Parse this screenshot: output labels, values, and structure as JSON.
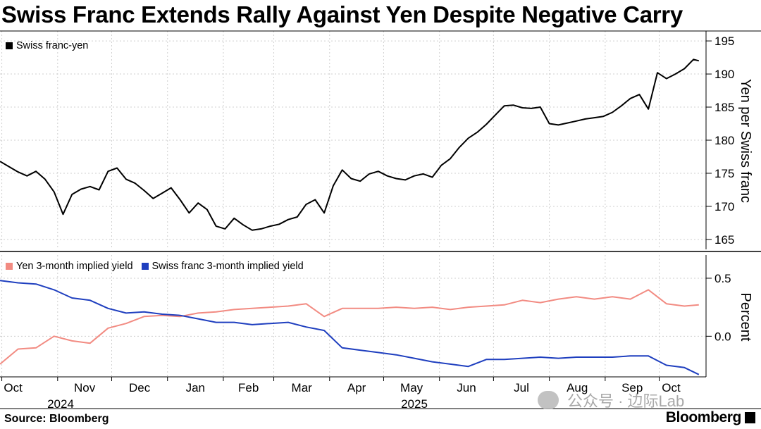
{
  "title": "Swiss Franc Extends Rally Against Yen Despite Negative Carry",
  "source": "Source: Bloomberg",
  "brand": "Bloomberg",
  "watermark": "公众号 · 边际Lab",
  "chart_data": [
    {
      "type": "line",
      "legend": [
        {
          "name": "Swiss franc-yen",
          "color": "#000000"
        }
      ],
      "ylabel": "Yen per Swiss franc",
      "ylim": [
        163.5,
        196.5
      ],
      "yticks": [
        165,
        170,
        175,
        180,
        185,
        190,
        195
      ],
      "grid": true,
      "series": [
        {
          "name": "Swiss franc-yen",
          "color": "#000000",
          "x": [
            "2024-09-30",
            "2024-10-05",
            "2024-10-10",
            "2024-10-15",
            "2024-10-20",
            "2024-10-25",
            "2024-10-30",
            "2024-11-04",
            "2024-11-09",
            "2024-11-14",
            "2024-11-19",
            "2024-11-24",
            "2024-11-29",
            "2024-12-04",
            "2024-12-09",
            "2024-12-14",
            "2024-12-19",
            "2024-12-24",
            "2024-12-29",
            "2025-01-03",
            "2025-01-08",
            "2025-01-13",
            "2025-01-18",
            "2025-01-23",
            "2025-01-28",
            "2025-02-02",
            "2025-02-07",
            "2025-02-12",
            "2025-02-17",
            "2025-02-22",
            "2025-02-27",
            "2025-03-04",
            "2025-03-09",
            "2025-03-14",
            "2025-03-19",
            "2025-03-24",
            "2025-03-29",
            "2025-04-03",
            "2025-04-08",
            "2025-04-13",
            "2025-04-18",
            "2025-04-23",
            "2025-04-28",
            "2025-05-03",
            "2025-05-08",
            "2025-05-13",
            "2025-05-18",
            "2025-05-23",
            "2025-05-28",
            "2025-06-02",
            "2025-06-07",
            "2025-06-12",
            "2025-06-17",
            "2025-06-22",
            "2025-06-27",
            "2025-07-02",
            "2025-07-07",
            "2025-07-12",
            "2025-07-17",
            "2025-07-22",
            "2025-07-27",
            "2025-08-01",
            "2025-08-06",
            "2025-08-11",
            "2025-08-16",
            "2025-08-21",
            "2025-08-26",
            "2025-08-31",
            "2025-09-05",
            "2025-09-10",
            "2025-09-15",
            "2025-09-20",
            "2025-09-25",
            "2025-09-30",
            "2025-10-05",
            "2025-10-10",
            "2025-10-15",
            "2025-10-20",
            "2025-10-23"
          ],
          "values": [
            176.8,
            176.0,
            175.2,
            174.6,
            175.3,
            174.1,
            172.2,
            168.8,
            171.8,
            172.6,
            173.0,
            172.5,
            175.3,
            175.8,
            174.1,
            173.5,
            172.4,
            171.2,
            172.0,
            172.8,
            171.0,
            169.0,
            170.5,
            169.5,
            167.0,
            166.6,
            168.2,
            167.2,
            166.4,
            166.6,
            167.0,
            167.3,
            168.0,
            168.4,
            170.3,
            171.0,
            169.0,
            173.1,
            175.5,
            174.2,
            173.8,
            174.9,
            175.3,
            174.6,
            174.2,
            174.0,
            174.6,
            174.9,
            174.4,
            176.2,
            177.2,
            178.9,
            180.3,
            181.2,
            182.4,
            183.8,
            185.2,
            185.3,
            184.9,
            184.8,
            185.0,
            182.5,
            182.3,
            182.6,
            182.9,
            183.2,
            183.4,
            183.6,
            184.2,
            185.2,
            186.3,
            186.9,
            184.7,
            190.2,
            189.3,
            190.0,
            190.8,
            192.2,
            192.0
          ]
        }
      ]
    },
    {
      "type": "line",
      "legend": [
        {
          "name": "Yen 3-month implied yield",
          "color": "#f28b82"
        },
        {
          "name": "Swiss franc 3-month implied yield",
          "color": "#1f3fbf"
        }
      ],
      "ylabel": "Percent",
      "ylim": [
        -0.35,
        0.7
      ],
      "yticks": [
        0.0,
        0.5
      ],
      "grid": true,
      "series": [
        {
          "name": "Yen 3-month implied yield",
          "color": "#f28b82",
          "x": [
            "2024-09-30",
            "2024-10-10",
            "2024-10-20",
            "2024-10-30",
            "2024-11-09",
            "2024-11-19",
            "2024-11-29",
            "2024-12-09",
            "2024-12-19",
            "2024-12-29",
            "2025-01-08",
            "2025-01-18",
            "2025-01-28",
            "2025-02-07",
            "2025-02-17",
            "2025-02-27",
            "2025-03-09",
            "2025-03-19",
            "2025-03-29",
            "2025-04-08",
            "2025-04-18",
            "2025-04-28",
            "2025-05-08",
            "2025-05-18",
            "2025-05-28",
            "2025-06-07",
            "2025-06-17",
            "2025-06-27",
            "2025-07-07",
            "2025-07-17",
            "2025-07-27",
            "2025-08-06",
            "2025-08-16",
            "2025-08-26",
            "2025-09-05",
            "2025-09-15",
            "2025-09-25",
            "2025-10-05",
            "2025-10-15",
            "2025-10-23"
          ],
          "values": [
            -0.24,
            -0.11,
            -0.1,
            0.0,
            -0.04,
            -0.06,
            0.07,
            0.11,
            0.17,
            0.18,
            0.17,
            0.2,
            0.21,
            0.23,
            0.24,
            0.25,
            0.26,
            0.28,
            0.17,
            0.24,
            0.24,
            0.24,
            0.25,
            0.24,
            0.25,
            0.23,
            0.25,
            0.26,
            0.27,
            0.31,
            0.29,
            0.32,
            0.34,
            0.32,
            0.34,
            0.32,
            0.4,
            0.28,
            0.26,
            0.27
          ]
        },
        {
          "name": "Swiss franc 3-month implied yield",
          "color": "#1f3fbf",
          "x": [
            "2024-09-30",
            "2024-10-10",
            "2024-10-20",
            "2024-10-30",
            "2024-11-09",
            "2024-11-19",
            "2024-11-29",
            "2024-12-09",
            "2024-12-19",
            "2024-12-29",
            "2025-01-08",
            "2025-01-18",
            "2025-01-28",
            "2025-02-07",
            "2025-02-17",
            "2025-02-27",
            "2025-03-09",
            "2025-03-19",
            "2025-03-29",
            "2025-04-08",
            "2025-04-18",
            "2025-04-28",
            "2025-05-08",
            "2025-05-18",
            "2025-05-28",
            "2025-06-07",
            "2025-06-17",
            "2025-06-27",
            "2025-07-07",
            "2025-07-17",
            "2025-07-27",
            "2025-08-06",
            "2025-08-16",
            "2025-08-26",
            "2025-09-05",
            "2025-09-15",
            "2025-09-25",
            "2025-10-05",
            "2025-10-15",
            "2025-10-23"
          ],
          "values": [
            0.48,
            0.46,
            0.45,
            0.4,
            0.33,
            0.31,
            0.24,
            0.2,
            0.21,
            0.19,
            0.18,
            0.15,
            0.12,
            0.12,
            0.1,
            0.11,
            0.12,
            0.08,
            0.05,
            -0.1,
            -0.12,
            -0.14,
            -0.16,
            -0.19,
            -0.22,
            -0.24,
            -0.26,
            -0.2,
            -0.2,
            -0.19,
            -0.18,
            -0.19,
            -0.18,
            -0.18,
            -0.18,
            -0.17,
            -0.17,
            -0.25,
            -0.27,
            -0.33
          ]
        }
      ],
      "x_ticks": [
        "Oct",
        "Nov",
        "Dec",
        "Jan",
        "Feb",
        "Mar",
        "Apr",
        "May",
        "Jun",
        "Jul",
        "Aug",
        "Sep",
        "Oct"
      ],
      "x_years": [
        "2024",
        "2025"
      ]
    }
  ]
}
